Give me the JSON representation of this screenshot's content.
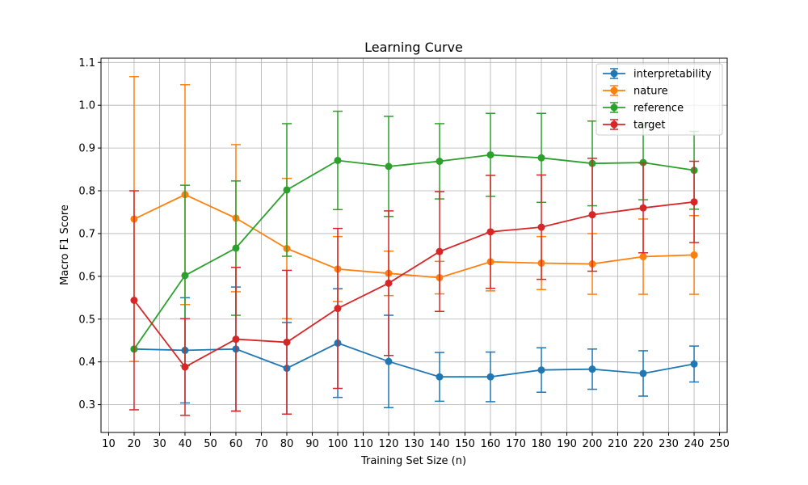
{
  "chart_data": {
    "type": "line",
    "title": "Learning Curve",
    "xlabel": "Training Set Size (n)",
    "ylabel": "Macro F1 Score",
    "xlim": [
      7,
      253
    ],
    "ylim": [
      0.235,
      1.11
    ],
    "xticks": [
      10,
      20,
      30,
      40,
      50,
      60,
      70,
      80,
      90,
      100,
      110,
      120,
      130,
      140,
      150,
      160,
      170,
      180,
      190,
      200,
      210,
      220,
      230,
      240,
      250
    ],
    "yticks": [
      0.3,
      0.4,
      0.5,
      0.6,
      0.7,
      0.8,
      0.9,
      1.0,
      1.1
    ],
    "ytick_labels": [
      "0.3",
      "0.4",
      "0.5",
      "0.6",
      "0.7",
      "0.8",
      "0.9",
      "1.0",
      "1.1"
    ],
    "grid": true,
    "legend_position": "top-right",
    "x": [
      20,
      40,
      60,
      80,
      100,
      120,
      140,
      160,
      180,
      200,
      220,
      240
    ],
    "series": [
      {
        "name": "interpretability",
        "color": "#1f77b4",
        "values": [
          0.43,
          0.427,
          0.43,
          0.385,
          0.444,
          0.401,
          0.365,
          0.365,
          0.381,
          0.383,
          0.373,
          0.395
        ],
        "errors": [
          0.0,
          0.123,
          0.145,
          0.107,
          0.127,
          0.108,
          0.057,
          0.058,
          0.052,
          0.047,
          0.053,
          0.042
        ]
      },
      {
        "name": "nature",
        "color": "#ff7f0e",
        "values": [
          0.734,
          0.791,
          0.736,
          0.665,
          0.617,
          0.607,
          0.597,
          0.634,
          0.631,
          0.629,
          0.646,
          0.65
        ],
        "errors": [
          0.333,
          0.257,
          0.172,
          0.164,
          0.076,
          0.052,
          0.038,
          0.068,
          0.062,
          0.071,
          0.088,
          0.092
        ]
      },
      {
        "name": "reference",
        "color": "#2ca02c",
        "values": [
          0.43,
          0.602,
          0.666,
          0.802,
          0.871,
          0.857,
          0.869,
          0.884,
          0.877,
          0.864,
          0.866,
          0.848
        ],
        "errors": [
          0.0,
          0.211,
          0.157,
          0.155,
          0.115,
          0.117,
          0.088,
          0.097,
          0.104,
          0.099,
          0.087,
          0.091
        ]
      },
      {
        "name": "target",
        "color": "#d62728",
        "values": [
          0.544,
          0.388,
          0.453,
          0.446,
          0.525,
          0.584,
          0.658,
          0.704,
          0.715,
          0.744,
          0.76,
          0.774
        ],
        "errors": [
          0.256,
          0.113,
          0.168,
          0.168,
          0.187,
          0.169,
          0.14,
          0.132,
          0.122,
          0.132,
          0.105,
          0.095
        ]
      }
    ]
  }
}
